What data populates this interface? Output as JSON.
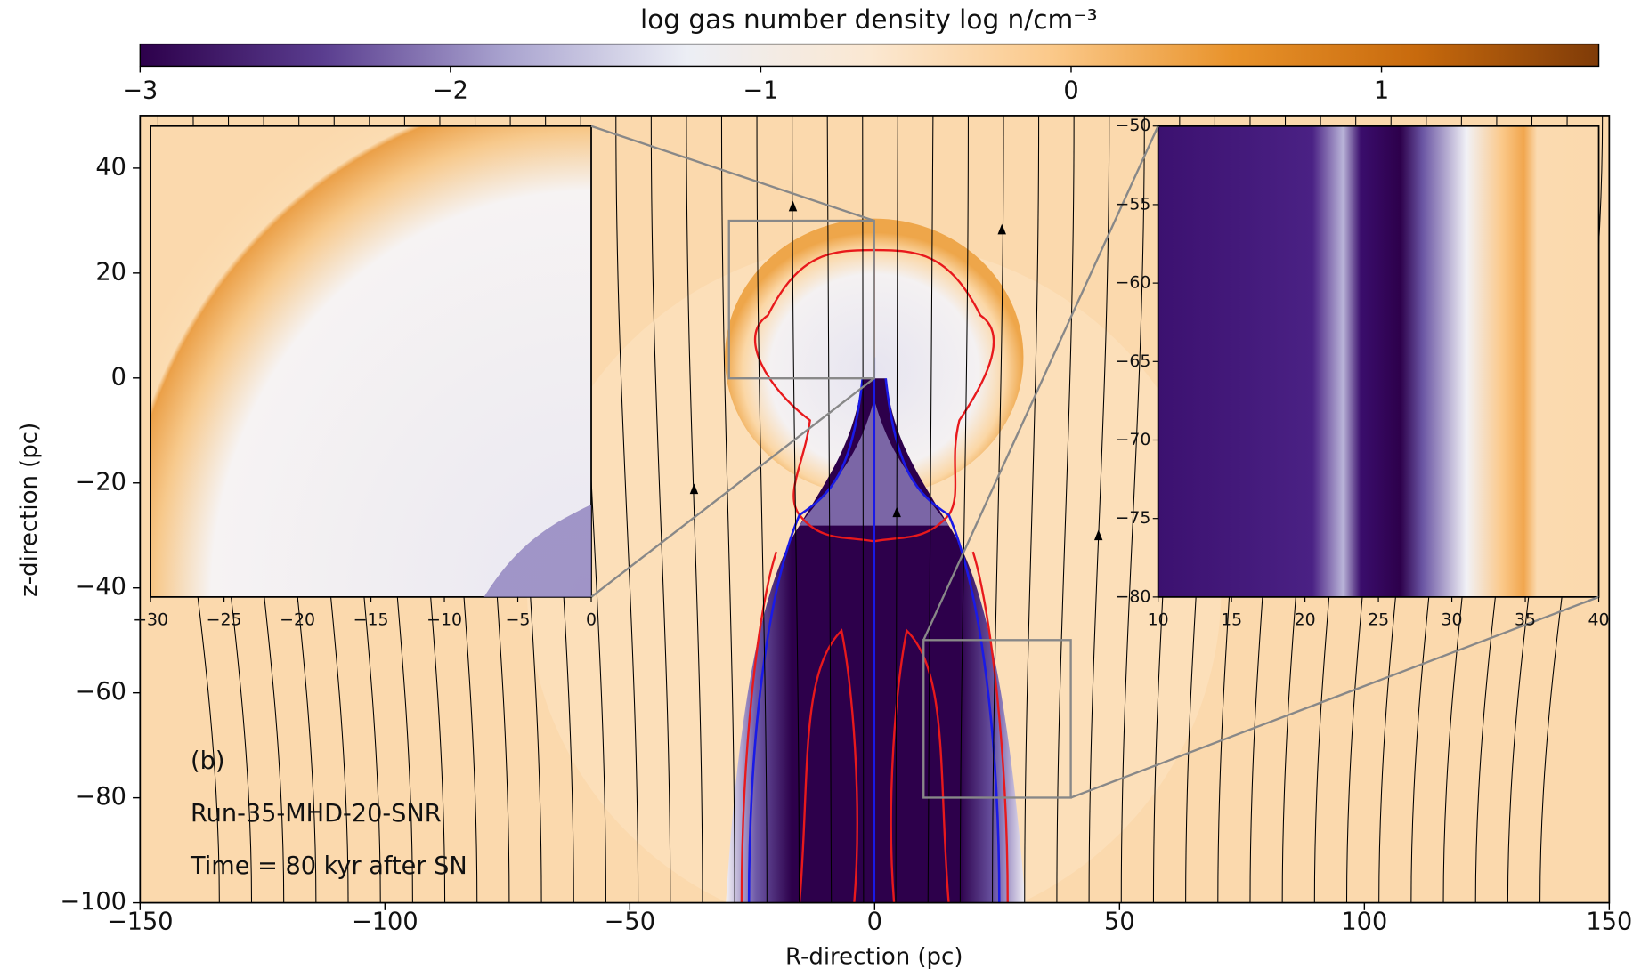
{
  "chart_data": {
    "type": "heatmap",
    "title": "log gas number density log n/cm⁻³",
    "xlabel": "R-direction (pc)",
    "ylabel": "z-direction (pc)",
    "xlim": [
      -150,
      150
    ],
    "ylim": [
      -100,
      50
    ],
    "xticks": [
      {
        "value": -150,
        "label": "−150"
      },
      {
        "value": -100,
        "label": "−100"
      },
      {
        "value": -50,
        "label": "−50"
      },
      0,
      50,
      100,
      150
    ],
    "yticks": [
      {
        "value": -100,
        "label": "−100"
      },
      {
        "value": -80,
        "label": "−80"
      },
      {
        "value": -60,
        "label": "−60"
      },
      {
        "value": -40,
        "label": "−40"
      },
      {
        "value": -20,
        "label": "−20"
      },
      0,
      20,
      40
    ],
    "annotations": [
      "(b)",
      "Run-35-MHD-20-SNR",
      "Time = 80 kyr after SN"
    ],
    "colorbar": {
      "lim": [
        -3,
        1.7
      ],
      "ticks": [
        {
          "value": -3,
          "label": "−3"
        },
        {
          "value": -2,
          "label": "−2"
        },
        {
          "value": -1,
          "label": "−1"
        },
        0,
        1
      ],
      "colors": [
        "#2d004b",
        "#5a3d8f",
        "#a9a3cf",
        "#eceef5",
        "#fbe8d2",
        "#fbc98a",
        "#e8922a",
        "#c86a0d",
        "#7f3b08"
      ]
    },
    "insets": [
      {
        "xlim": [
          -30,
          0
        ],
        "ylim": [
          0,
          30
        ],
        "xticks": [
          {
            "value": -30,
            "label": "−30"
          },
          {
            "value": -25,
            "label": "−25"
          },
          {
            "value": -20,
            "label": "−20"
          },
          {
            "value": -15,
            "label": "−15"
          },
          {
            "value": -10,
            "label": "−10"
          },
          {
            "value": -5,
            "label": "−5"
          },
          0
        ]
      },
      {
        "xlim": [
          10,
          40
        ],
        "ylim": [
          -80,
          -50
        ],
        "xticks": [
          10,
          15,
          20,
          25,
          30,
          35,
          40
        ],
        "yticks": [
          {
            "value": -50,
            "label": "−50"
          },
          {
            "value": -55,
            "label": "−55"
          },
          {
            "value": -60,
            "label": "−60"
          },
          {
            "value": -65,
            "label": "−65"
          },
          {
            "value": -70,
            "label": "−70"
          },
          {
            "value": -75,
            "label": "−75"
          },
          {
            "value": -80,
            "label": "−80"
          }
        ]
      }
    ]
  }
}
